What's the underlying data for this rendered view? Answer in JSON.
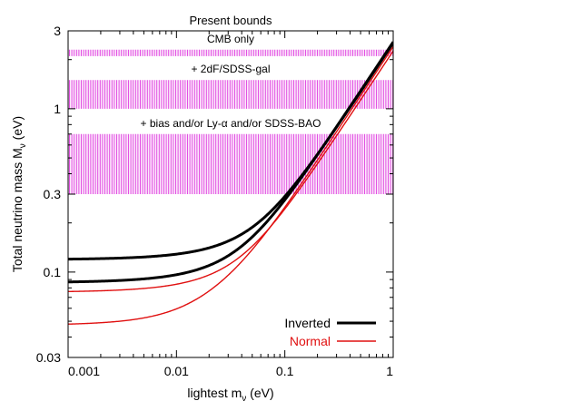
{
  "chart_data": {
    "type": "line",
    "title": "Present bounds",
    "xlabel_main": "lightest m",
    "xlabel_sub": "ν",
    "xlabel_unit": " (eV)",
    "ylabel_main": "Total neutrino mass M",
    "ylabel_sub": "ν",
    "ylabel_unit": " (eV)",
    "xscale": "log",
    "yscale": "log",
    "xlim": [
      0.001,
      1
    ],
    "ylim": [
      0.03,
      3
    ],
    "xticks": [
      {
        "value": 0.001,
        "label": "0.001"
      },
      {
        "value": 0.01,
        "label": "0.01"
      },
      {
        "value": 0.1,
        "label": "0.1"
      },
      {
        "value": 1,
        "label": "1"
      }
    ],
    "yticks": [
      {
        "value": 0.03,
        "label": "0.03"
      },
      {
        "value": 0.1,
        "label": "0.1"
      },
      {
        "value": 0.3,
        "label": "0.3"
      },
      {
        "value": 1,
        "label": "1"
      },
      {
        "value": 3,
        "label": "3"
      }
    ],
    "bands": [
      {
        "label": "CMB only",
        "ymin": 2.1,
        "ymax": 2.3,
        "color": "#e040e0"
      },
      {
        "label": "+ 2dF/SDSS-gal",
        "ymin": 1.0,
        "ymax": 1.5,
        "color": "#e040e0"
      },
      {
        "label": "+ bias and/or Ly-α and/or SDSS-BAO",
        "ymin": 0.3,
        "ymax": 0.7,
        "color": "#e040e0"
      }
    ],
    "series": [
      {
        "name": "Inverted",
        "color": "#000000",
        "width": 3,
        "band_lower": 0.087,
        "band_upper": 0.12
      },
      {
        "name": "Normal",
        "color": "#e01010",
        "width": 1.4,
        "band_lower": 0.048,
        "band_upper": 0.076
      }
    ],
    "legend_position": "bottom-right"
  }
}
